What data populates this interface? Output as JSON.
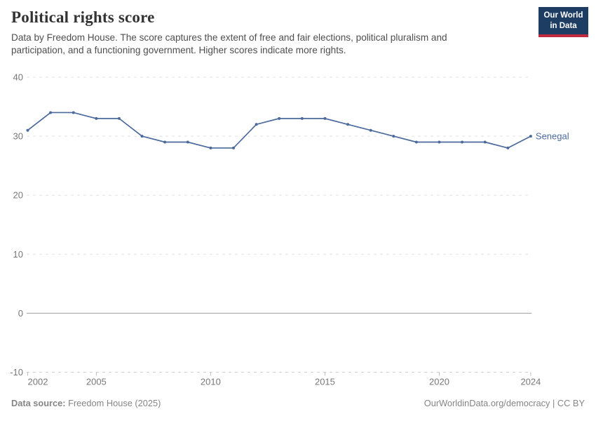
{
  "header": {
    "title": "Political rights score",
    "subtitle": "Data by Freedom House. The score captures the extent of free and fair elections, political pluralism and participation, and a functioning government. Higher scores indicate more rights.",
    "logo_line1": "Our World",
    "logo_line2": "in Data"
  },
  "chart_data": {
    "type": "line",
    "title": "Political rights score",
    "x": [
      2002,
      2003,
      2004,
      2005,
      2006,
      2007,
      2008,
      2009,
      2010,
      2011,
      2012,
      2013,
      2014,
      2015,
      2016,
      2017,
      2018,
      2019,
      2020,
      2021,
      2022,
      2023,
      2024
    ],
    "series": [
      {
        "name": "Senegal",
        "color": "#4C6A9C",
        "values": [
          31,
          34,
          34,
          33,
          33,
          30,
          29,
          29,
          28,
          28,
          32,
          33,
          33,
          33,
          32,
          31,
          30,
          29,
          29,
          29,
          29,
          28,
          30
        ]
      }
    ],
    "ylim": [
      -10,
      40
    ],
    "yticks": [
      40,
      30,
      20,
      10,
      0,
      -10
    ],
    "xticks": [
      2002,
      2005,
      2010,
      2015,
      2020,
      2024
    ],
    "xlabel": "",
    "ylabel": "",
    "grid": "horizontal-dashed, solid zero line, dashed bottom axis with ticks",
    "legend": "line-end entity label"
  },
  "footer": {
    "source_label": "Data source:",
    "source_value": "Freedom House (2025)",
    "right": "OurWorldinData.org/democracy | CC BY"
  },
  "colors": {
    "line": "#4C6A9C",
    "logo_bg": "#1d3d63",
    "logo_stripe": "#c0293e",
    "gridline": "#e2e2e2",
    "zero_line": "#9e9e9e"
  }
}
